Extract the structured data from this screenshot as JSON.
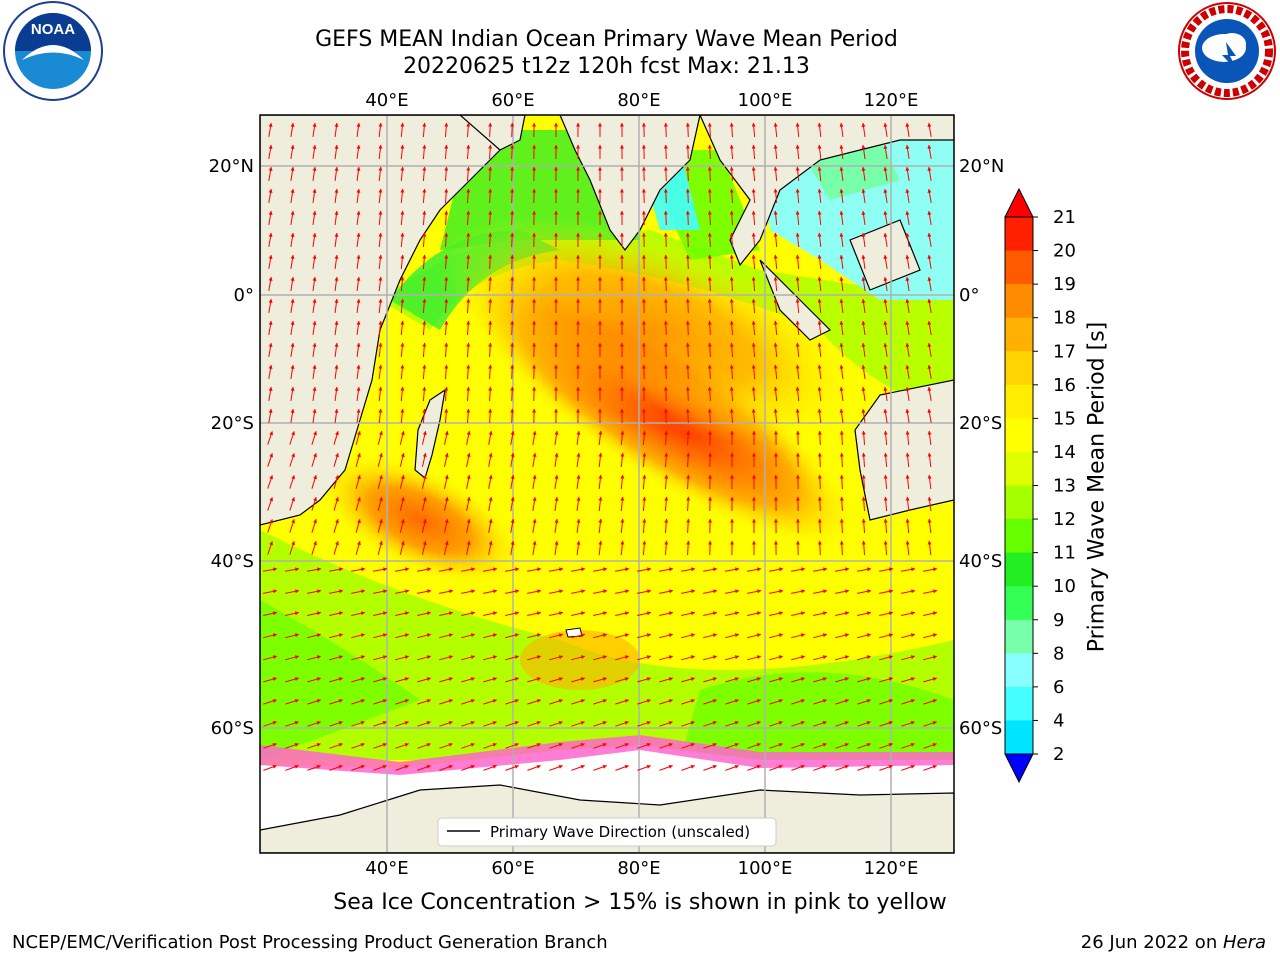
{
  "header": {
    "title_line1": "GEFS MEAN Indian Ocean Primary Wave Mean Period",
    "title_line2": "20220625 t12z 120h fcst   Max: 21.13"
  },
  "logos": {
    "left": "NOAA",
    "right": "NATIONAL WEATHER SERVICE"
  },
  "map": {
    "lon_ticks": [
      "40°E",
      "60°E",
      "80°E",
      "100°E",
      "120°E"
    ],
    "lat_ticks": [
      "20°N",
      "0°",
      "20°S",
      "40°S",
      "60°S"
    ],
    "lon_values": [
      40,
      60,
      80,
      100,
      120
    ],
    "lat_values": [
      20,
      0,
      -20,
      -40,
      -60
    ],
    "legend_label": "Primary Wave Direction (unscaled)",
    "arrow_color": "#ff0000",
    "land_color": "#efeddc",
    "ice_region_color": "#ffffff"
  },
  "colorbar": {
    "label": "Primary Wave Mean Period [s]",
    "ticks": [
      "21",
      "20",
      "19",
      "18",
      "17",
      "16",
      "15",
      "14",
      "13",
      "12",
      "11",
      "10",
      "9",
      "8",
      "6",
      "4",
      "2"
    ],
    "colors": [
      "#ff2000",
      "#ff5a00",
      "#ff8c00",
      "#ffb000",
      "#ffd400",
      "#ffee00",
      "#ffff00",
      "#dfff00",
      "#a6ff00",
      "#66ff00",
      "#22ee22",
      "#33ff55",
      "#77ffaa",
      "#88ffff",
      "#44ffff",
      "#00e5ff",
      "#00aaff"
    ],
    "min_extend_color": "#0000ff",
    "max_extend_color": "#ff0000"
  },
  "caption": "Sea Ice Concentration > 15% is shown in pink to yellow",
  "footer": {
    "left": "NCEP/EMC/Verification Post Processing Product Generation Branch",
    "right_date": "26 Jun 2022 on ",
    "right_machine": "Hera"
  }
}
